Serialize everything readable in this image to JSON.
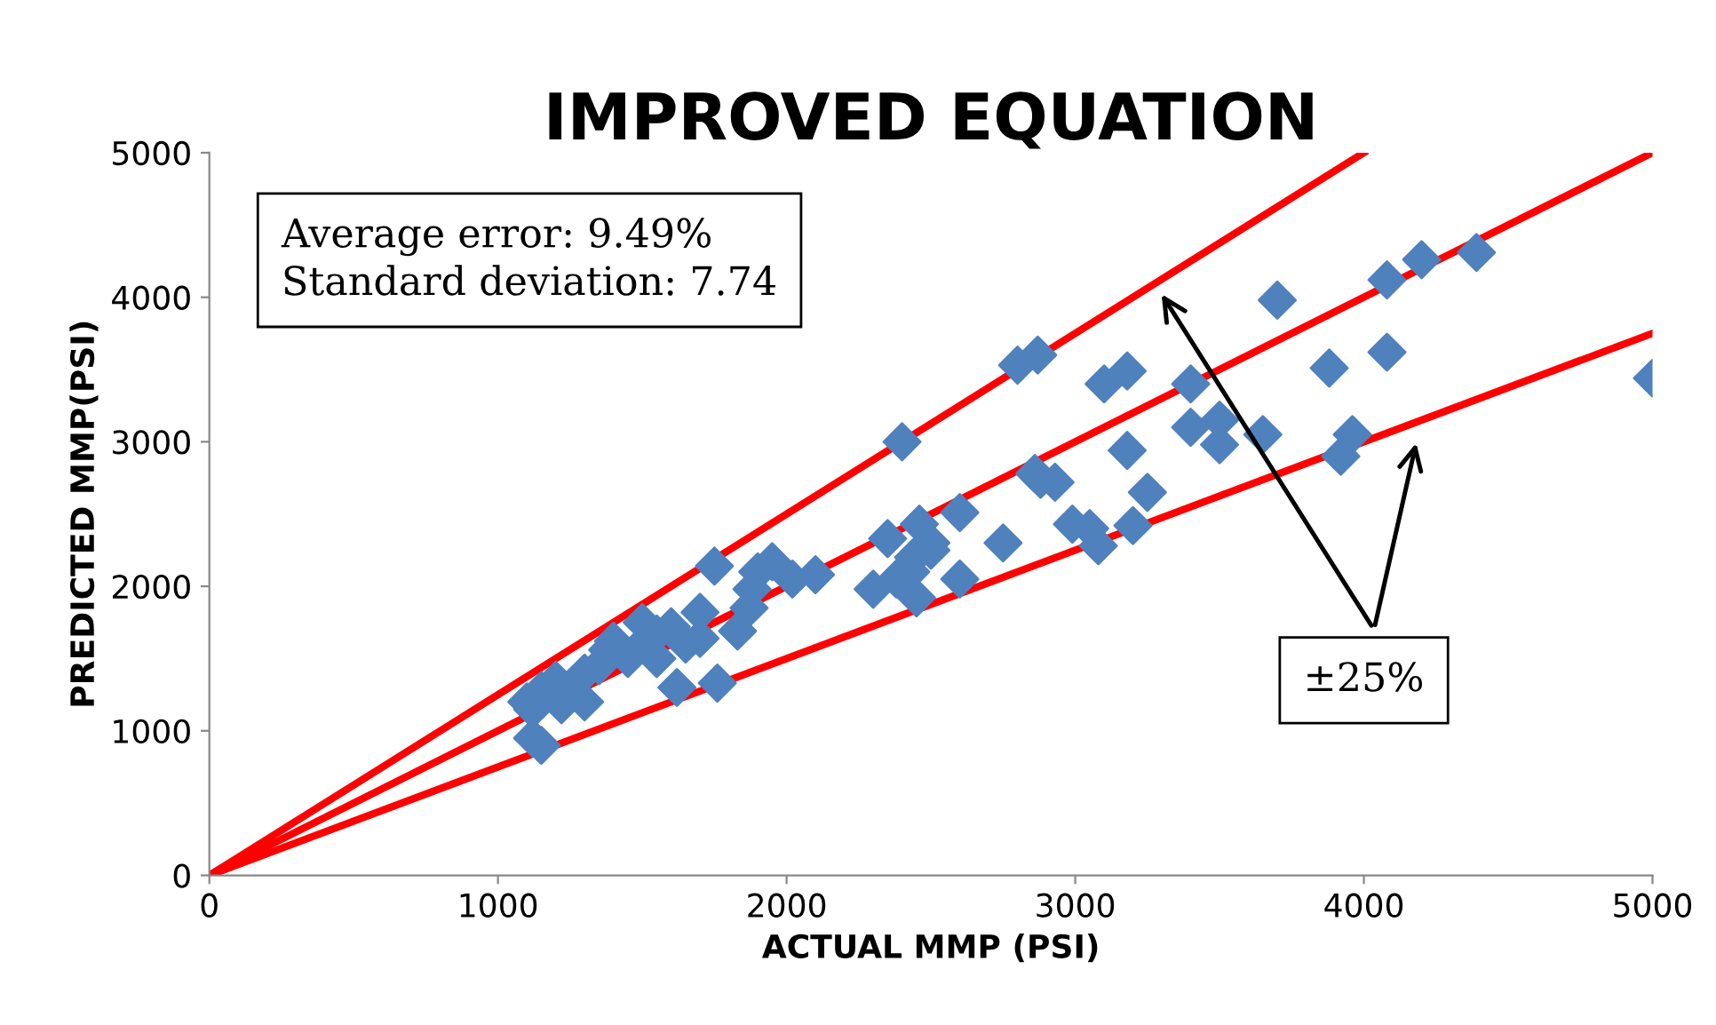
{
  "chart_data": {
    "type": "scatter",
    "title": "IMPROVED EQUATION",
    "xlabel": "ACTUAL MMP (PSI)",
    "ylabel": "PREDICTED MMP(PSI)",
    "xlim": [
      0,
      5000
    ],
    "ylim": [
      0,
      5000
    ],
    "xticks": [
      0,
      1000,
      2000,
      3000,
      4000,
      5000
    ],
    "yticks": [
      0,
      1000,
      2000,
      3000,
      4000,
      5000
    ],
    "grid": false,
    "legend": false,
    "marker": "diamond",
    "annotations": [
      "Average error: 9.49%",
      "Standard deviation: 7.74",
      "±25%"
    ],
    "series": [
      {
        "color": "#4f81bd",
        "x": [
          5000,
          4390,
          4200,
          4080,
          4080,
          3880,
          3700,
          3650,
          3960,
          3920,
          3500,
          3500,
          3400,
          3400,
          3250,
          3180,
          3100,
          3180,
          3200,
          3080,
          3050,
          2990,
          2930,
          2860,
          2880,
          2870,
          2800,
          2600,
          2600,
          2750,
          2400,
          2350,
          2460,
          2500,
          2440,
          2430,
          2450,
          2380,
          2300,
          2500,
          2100,
          2020,
          1950,
          1900,
          1880,
          1870,
          1830,
          1750,
          1760,
          1700,
          1700,
          1650,
          1620,
          1600,
          1550,
          1550,
          1500,
          1500,
          1450,
          1400,
          1380,
          1350,
          1300,
          1300,
          1250,
          1200,
          1150,
          1120,
          1100,
          1150,
          1120,
          1220
        ],
        "values": [
          3440,
          4310,
          4260,
          4120,
          3620,
          3510,
          3980,
          3050,
          3050,
          2900,
          3150,
          2980,
          3400,
          3100,
          2650,
          3490,
          3400,
          2940,
          2420,
          2280,
          2400,
          2430,
          2720,
          2780,
          2740,
          3600,
          3530,
          2510,
          2050,
          2300,
          3000,
          2330,
          2430,
          2300,
          2200,
          2100,
          1920,
          2050,
          1980,
          2250,
          2080,
          2050,
          2170,
          2100,
          1980,
          1850,
          1690,
          2140,
          1330,
          1820,
          1640,
          1600,
          1300,
          1720,
          1670,
          1500,
          1750,
          1600,
          1500,
          1620,
          1560,
          1450,
          1400,
          1200,
          1300,
          1350,
          1280,
          1150,
          1200,
          900,
          950,
          1180
        ]
      },
      {
        "type": "line",
        "color": "#ff0000",
        "marker": "none",
        "x": [
          0,
          4000
        ],
        "values": [
          0,
          5000
        ]
      },
      {
        "type": "line",
        "color": "#ff0000",
        "marker": "none",
        "x": [
          0,
          5000
        ],
        "values": [
          0,
          5000
        ]
      },
      {
        "type": "line",
        "color": "#ff0000",
        "marker": "none",
        "x": [
          0,
          5000
        ],
        "values": [
          0,
          3750
        ]
      }
    ]
  }
}
